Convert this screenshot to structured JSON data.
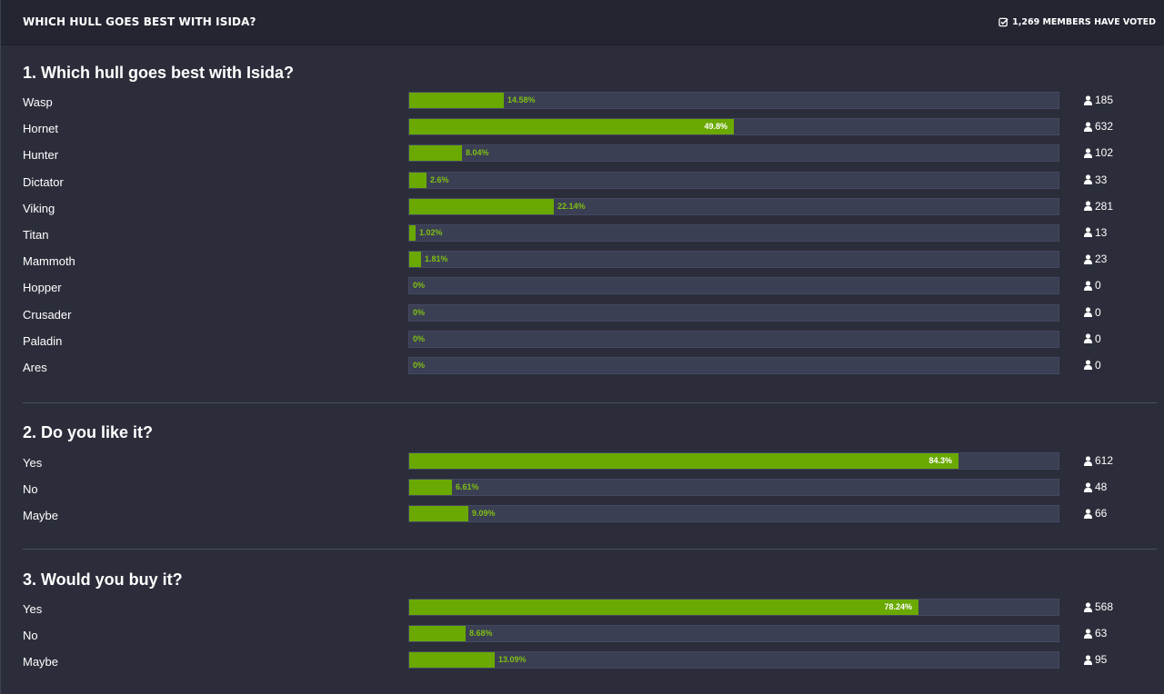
{
  "header": {
    "title": "WHICH HULL GOES BEST WITH ISIDA?",
    "voted_text": "1,269 MEMBERS HAVE VOTED"
  },
  "colors": {
    "background": "#2b2e3a",
    "header_bg": "#232631",
    "bar_track": "#3b3f53",
    "bar_fill": "#6aa901",
    "pct_text": "#7fbf14"
  },
  "icons": {
    "voted": "check-square-icon",
    "voter": "user-icon"
  },
  "questions": [
    {
      "title": "1. Which hull goes best with Isida?",
      "choices": [
        {
          "label": "Wasp",
          "percent_label": "14.58%",
          "percent": 14.58,
          "votes": "185"
        },
        {
          "label": "Hornet",
          "percent_label": "49.8%",
          "percent": 49.8,
          "votes": "632"
        },
        {
          "label": "Hunter",
          "percent_label": "8.04%",
          "percent": 8.04,
          "votes": "102"
        },
        {
          "label": "Dictator",
          "percent_label": "2.6%",
          "percent": 2.6,
          "votes": "33"
        },
        {
          "label": "Viking",
          "percent_label": "22.14%",
          "percent": 22.14,
          "votes": "281"
        },
        {
          "label": "Titan",
          "percent_label": "1.02%",
          "percent": 1.02,
          "votes": "13"
        },
        {
          "label": "Mammoth",
          "percent_label": "1.81%",
          "percent": 1.81,
          "votes": "23"
        },
        {
          "label": "Hopper",
          "percent_label": "0%",
          "percent": 0,
          "votes": "0"
        },
        {
          "label": "Crusader",
          "percent_label": "0%",
          "percent": 0,
          "votes": "0"
        },
        {
          "label": "Paladin",
          "percent_label": "0%",
          "percent": 0,
          "votes": "0"
        },
        {
          "label": "Ares",
          "percent_label": "0%",
          "percent": 0,
          "votes": "0"
        }
      ]
    },
    {
      "title": "2. Do you like it?",
      "choices": [
        {
          "label": "Yes",
          "percent_label": "84.3%",
          "percent": 84.3,
          "votes": "612"
        },
        {
          "label": "No",
          "percent_label": "6.61%",
          "percent": 6.61,
          "votes": "48"
        },
        {
          "label": "Maybe",
          "percent_label": "9.09%",
          "percent": 9.09,
          "votes": "66"
        }
      ]
    },
    {
      "title": "3. Would you buy it?",
      "choices": [
        {
          "label": "Yes",
          "percent_label": "78.24%",
          "percent": 78.24,
          "votes": "568"
        },
        {
          "label": "No",
          "percent_label": "8.68%",
          "percent": 8.68,
          "votes": "63"
        },
        {
          "label": "Maybe",
          "percent_label": "13.09%",
          "percent": 13.09,
          "votes": "95"
        }
      ]
    }
  ]
}
